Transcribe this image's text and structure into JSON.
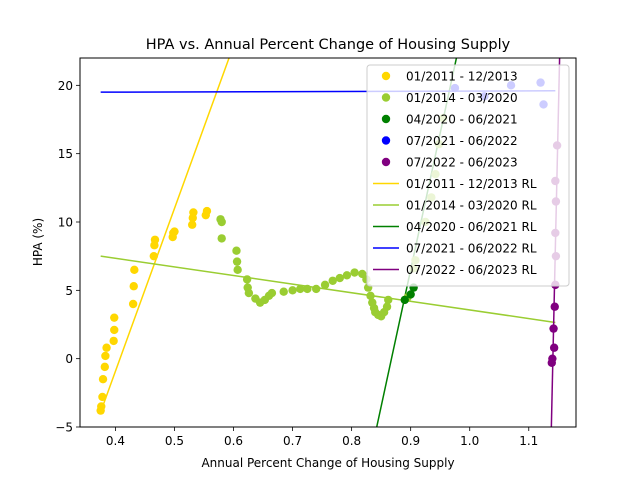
{
  "chart_data": {
    "type": "scatter",
    "title": "HPA vs. Annual Percent Change of Housing Supply",
    "xlabel": "Annual Percent Change of Housing Supply",
    "ylabel": "HPA (%)",
    "xlim": [
      0.34,
      1.18
    ],
    "ylim": [
      -5,
      22
    ],
    "xticks": [
      "0.4",
      "0.5",
      "0.6",
      "0.7",
      "0.8",
      "0.9",
      "1.0",
      "1.1"
    ],
    "xtick_values": [
      0.4,
      0.5,
      0.6,
      0.7,
      0.8,
      0.9,
      1.0,
      1.1
    ],
    "yticks": [
      "−5",
      "0",
      "5",
      "10",
      "15",
      "20"
    ],
    "ytick_values": [
      -5,
      0,
      5,
      10,
      15,
      20
    ],
    "grid": false,
    "legend_position": "top-right",
    "series": [
      {
        "name": "01/2011 - 12/2013",
        "color": "#ffd700",
        "points": [
          [
            0.375,
            -3.8
          ],
          [
            0.376,
            -3.5
          ],
          [
            0.378,
            -2.8
          ],
          [
            0.379,
            -1.5
          ],
          [
            0.382,
            -0.6
          ],
          [
            0.383,
            0.2
          ],
          [
            0.385,
            0.8
          ],
          [
            0.397,
            1.3
          ],
          [
            0.398,
            2.1
          ],
          [
            0.398,
            3.0
          ],
          [
            0.43,
            4.0
          ],
          [
            0.431,
            5.3
          ],
          [
            0.432,
            6.5
          ],
          [
            0.465,
            7.5
          ],
          [
            0.466,
            8.3
          ],
          [
            0.467,
            8.7
          ],
          [
            0.497,
            8.9
          ],
          [
            0.498,
            9.2
          ],
          [
            0.5,
            9.3
          ],
          [
            0.53,
            9.8
          ],
          [
            0.531,
            10.3
          ],
          [
            0.532,
            10.7
          ],
          [
            0.553,
            10.5
          ],
          [
            0.555,
            10.8
          ]
        ]
      },
      {
        "name": "01/2014 - 03/2020",
        "color": "#9acd32",
        "points": [
          [
            0.578,
            10.2
          ],
          [
            0.58,
            10.0
          ],
          [
            0.58,
            8.8
          ],
          [
            0.605,
            7.9
          ],
          [
            0.606,
            7.1
          ],
          [
            0.607,
            6.5
          ],
          [
            0.623,
            5.8
          ],
          [
            0.624,
            5.2
          ],
          [
            0.626,
            4.8
          ],
          [
            0.637,
            4.4
          ],
          [
            0.645,
            4.1
          ],
          [
            0.653,
            4.3
          ],
          [
            0.66,
            4.6
          ],
          [
            0.665,
            4.8
          ],
          [
            0.685,
            4.9
          ],
          [
            0.7,
            5.0
          ],
          [
            0.713,
            5.1
          ],
          [
            0.725,
            5.1
          ],
          [
            0.74,
            5.1
          ],
          [
            0.755,
            5.4
          ],
          [
            0.768,
            5.7
          ],
          [
            0.78,
            5.9
          ],
          [
            0.792,
            6.1
          ],
          [
            0.805,
            6.3
          ],
          [
            0.818,
            6.2
          ],
          [
            0.825,
            5.8
          ],
          [
            0.828,
            5.2
          ],
          [
            0.832,
            4.6
          ],
          [
            0.835,
            4.1
          ],
          [
            0.838,
            3.7
          ],
          [
            0.84,
            3.4
          ],
          [
            0.845,
            3.2
          ],
          [
            0.85,
            3.1
          ],
          [
            0.855,
            3.4
          ],
          [
            0.86,
            3.8
          ],
          [
            0.862,
            4.3
          ],
          [
            0.895,
            4.5
          ],
          [
            0.905,
            6.6
          ],
          [
            0.908,
            7.2
          ],
          [
            0.925,
            10.0
          ],
          [
            0.935,
            11.8
          ],
          [
            0.942,
            13.5
          ],
          [
            0.948,
            15.7
          ],
          [
            0.955,
            17.6
          ]
        ]
      },
      {
        "name": "04/2020 - 06/2021",
        "color": "#008000",
        "points": [
          [
            0.89,
            4.3
          ],
          [
            0.9,
            4.7
          ],
          [
            0.905,
            5.2
          ]
        ]
      },
      {
        "name": "07/2021 - 06/2022",
        "color": "#0000ff",
        "points": [
          [
            0.975,
            19.8
          ],
          [
            1.025,
            19.2
          ],
          [
            1.07,
            20.0
          ],
          [
            1.12,
            20.2
          ],
          [
            1.125,
            18.6
          ]
        ]
      },
      {
        "name": "07/2022 - 06/2023",
        "color": "#800080",
        "points": [
          [
            1.148,
            15.6
          ],
          [
            1.145,
            13.0
          ],
          [
            1.146,
            11.5
          ],
          [
            1.145,
            9.2
          ],
          [
            1.146,
            7.5
          ],
          [
            1.145,
            5.4
          ],
          [
            1.144,
            3.8
          ],
          [
            1.142,
            2.2
          ],
          [
            1.143,
            0.8
          ],
          [
            1.14,
            0.0
          ],
          [
            1.139,
            -0.3
          ]
        ]
      }
    ],
    "regression_lines": [
      {
        "name": "01/2011 - 12/2013 RL",
        "color": "#ffd700",
        "x": [
          0.375,
          0.605
        ],
        "y": [
          -3.9,
          23.5
        ]
      },
      {
        "name": "01/2014 - 03/2020 RL",
        "color": "#9acd32",
        "x": [
          0.375,
          1.145
        ],
        "y": [
          7.5,
          2.65
        ]
      },
      {
        "name": "04/2020 - 06/2021 RL",
        "color": "#008000",
        "x": [
          0.84,
          0.985
        ],
        "y": [
          -5.5,
          23.5
        ]
      },
      {
        "name": "07/2021 - 06/2022 RL",
        "color": "#0000ff",
        "x": [
          0.375,
          1.145
        ],
        "y": [
          19.5,
          19.6
        ]
      },
      {
        "name": "07/2022 - 06/2023 RL",
        "color": "#800080",
        "x": [
          1.138,
          1.153
        ],
        "y": [
          -5.5,
          23.5
        ]
      }
    ]
  }
}
